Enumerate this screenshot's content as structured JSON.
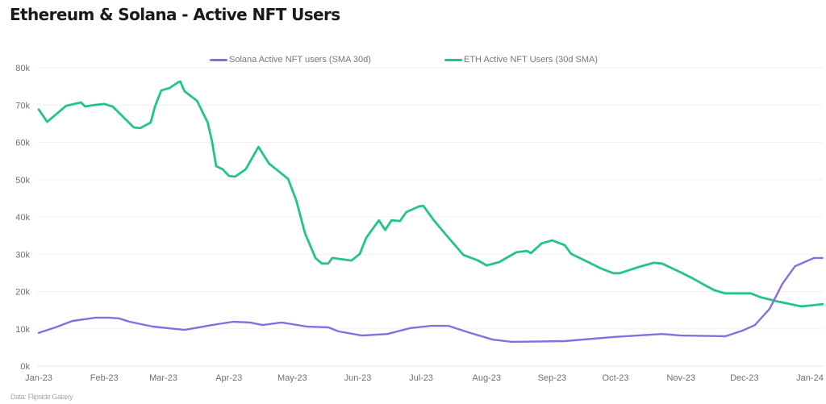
{
  "title": "Ethereum & Solana - Active NFT Users",
  "source": "Data: Flipside Galaxy",
  "colors": {
    "solana": "#8B6CE0",
    "eth": "#22C48A",
    "grid": "#f0f0f0",
    "axis_text": "#6e6e6e"
  },
  "chart_data": {
    "type": "line",
    "title": "Ethereum & Solana - Active NFT Users",
    "xlabel": "",
    "ylabel": "",
    "grid": true,
    "legend_position": "top",
    "x_unit": "days since 2023-01-01",
    "xlim": [
      0,
      378
    ],
    "ylim": [
      0,
      80000
    ],
    "y_ticks": [
      0,
      10000,
      20000,
      30000,
      40000,
      50000,
      60000,
      70000,
      80000
    ],
    "y_tick_labels": [
      "0k",
      "10k",
      "20k",
      "30k",
      "40k",
      "50k",
      "60k",
      "70k",
      "80k"
    ],
    "x_ticks": [
      0,
      31,
      59,
      90,
      120,
      151,
      181,
      212,
      243,
      273,
      304,
      334,
      365
    ],
    "x_tick_labels": [
      "Jan-23",
      "Feb-23",
      "Mar-23",
      "Apr-23",
      "May-23",
      "Jun-23",
      "Jul-23",
      "Aug-23",
      "Sep-23",
      "Oct-23",
      "Nov-23",
      "Dec-23",
      "Jan-24"
    ],
    "series": [
      {
        "name": "Solana Active NFT users (SMA 30d)",
        "color": "#8B6CE0",
        "x": [
          0,
          8,
          16,
          27,
          33,
          38,
          43,
          54,
          69,
          82,
          92,
          100,
          106,
          115,
          127,
          137,
          142,
          153,
          165,
          176,
          186,
          194,
          203,
          215,
          224,
          249,
          272,
          295,
          304,
          325,
          333,
          339,
          346,
          352,
          358,
          367,
          371
        ],
        "y": [
          8900,
          10400,
          12100,
          13000,
          13000,
          12800,
          11900,
          10600,
          9700,
          11000,
          11900,
          11700,
          11000,
          11700,
          10600,
          10400,
          9300,
          8200,
          8600,
          10200,
          10800,
          10800,
          9100,
          7100,
          6500,
          6700,
          7800,
          8600,
          8200,
          8000,
          9500,
          11000,
          15400,
          22100,
          26800,
          29000,
          29000
        ]
      },
      {
        "name": "ETH Active NFT Users (30d SMA)",
        "color": "#22C48A",
        "x": [
          0,
          4,
          13,
          20,
          22,
          26,
          31,
          35,
          40,
          45,
          48,
          53,
          55,
          58,
          62,
          66,
          67,
          69,
          75,
          80,
          82,
          84,
          87,
          90,
          93,
          98,
          104,
          109,
          113,
          118,
          122,
          126,
          131,
          134,
          137,
          139,
          148,
          152,
          155,
          161,
          164,
          167,
          171,
          174,
          180,
          182,
          187,
          194,
          201,
          208,
          212,
          218,
          226,
          231,
          233,
          238,
          243,
          249,
          252,
          260,
          266,
          272,
          275,
          283,
          291,
          295,
          304,
          310,
          315,
          320,
          325,
          337,
          342,
          350,
          361,
          371
        ],
        "y": [
          68800,
          65500,
          69800,
          70700,
          69600,
          70000,
          70300,
          69600,
          66800,
          64000,
          63800,
          65300,
          69600,
          73900,
          74600,
          76100,
          76300,
          73700,
          71100,
          65300,
          60300,
          53600,
          52800,
          51000,
          50800,
          52800,
          58800,
          54300,
          52500,
          50200,
          44300,
          35700,
          29000,
          27500,
          27500,
          29000,
          28300,
          30100,
          34400,
          39100,
          36500,
          39100,
          38900,
          41300,
          42800,
          43000,
          39100,
          34400,
          29800,
          28300,
          27000,
          27900,
          30500,
          30900,
          30300,
          32900,
          33700,
          32400,
          30100,
          27900,
          26200,
          24900,
          24900,
          26400,
          27700,
          27500,
          25100,
          23400,
          21800,
          20300,
          19500,
          19500,
          18400,
          17300,
          16000,
          16600
        ]
      }
    ]
  }
}
